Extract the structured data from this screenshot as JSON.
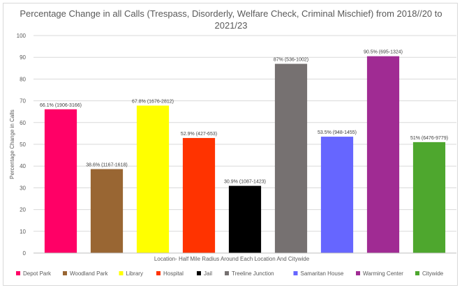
{
  "chart_data": {
    "type": "bar",
    "title_line1": "Percentage Change in all Calls (Trespass, Disorderly, Welfare Check, Criminal Mischief) from 2018//20 to",
    "title_line2": "2021/23",
    "xlabel": "Location- Half Mile Radius Around Each Location And Citywide",
    "ylabel": "Percentage Change in Calls",
    "ylim": [
      0,
      100
    ],
    "yticks": [
      0,
      10,
      20,
      30,
      40,
      50,
      60,
      70,
      80,
      90,
      100
    ],
    "grid": true,
    "legend_position": "bottom",
    "categories": [
      "Depot Park",
      "Woodland Park",
      "Library",
      "Hospital",
      "Jail",
      "Treeline Junction",
      "Samaritan House",
      "Warming Center",
      "Citywide"
    ],
    "values": [
      66.1,
      38.6,
      67.8,
      52.9,
      30.9,
      87,
      53.5,
      90.5,
      51
    ],
    "data_labels": [
      "66.1% (1906-3166)",
      "38.6% (1167-1618)",
      "67.8% (1676-2812)",
      "52.9% (427-653)",
      "30.9% (1087-1423)",
      "87% (536-1002)",
      "53.5% (948-1455)",
      "90.5% (695-1324)",
      "51% (6476-9779)"
    ],
    "colors": [
      "#ff0066",
      "#996633",
      "#ffff00",
      "#ff3300",
      "#000000",
      "#767171",
      "#6666ff",
      "#a02b93",
      "#4ea72e"
    ]
  }
}
